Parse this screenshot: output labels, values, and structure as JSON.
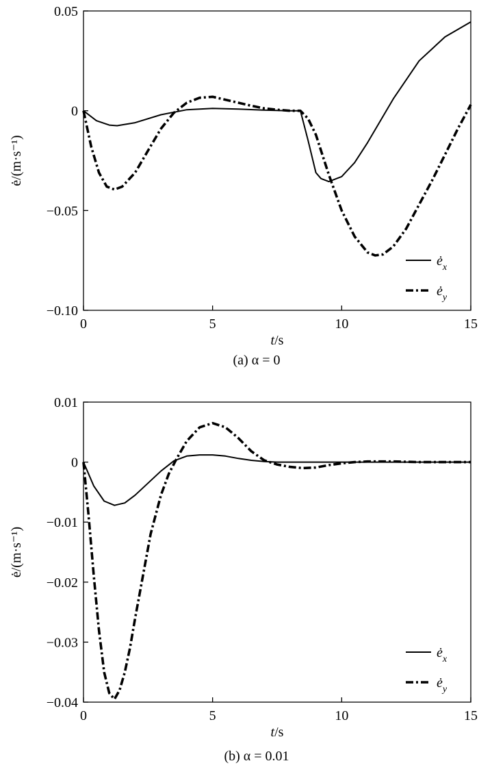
{
  "chart_data": [
    {
      "type": "line",
      "caption": "(a)  α = 0",
      "xlabel_var": "t",
      "xlabel_unit": "/s",
      "ylabel": "ė/(m·s⁻¹)",
      "xlim": [
        0,
        15
      ],
      "ylim": [
        -0.1,
        0.05
      ],
      "xticks": [
        0,
        5,
        10,
        15
      ],
      "xtick_labels": [
        "0",
        "5",
        "10",
        "15"
      ],
      "yticks": [
        0.05,
        0,
        -0.05,
        -0.1
      ],
      "ytick_labels": [
        "0.05",
        "0",
        "−0.05",
        "−0.10"
      ],
      "legend_position": "lower-right",
      "series": [
        {
          "name": "ė_x",
          "legend_base": "ė",
          "legend_sub": "x",
          "style": "solid",
          "x": [
            0,
            0.5,
            1.0,
            1.3,
            2.0,
            3.0,
            4.0,
            5.0,
            6.0,
            7.0,
            8.0,
            8.4,
            8.7,
            9.0,
            9.2,
            9.5,
            10.0,
            10.5,
            11.0,
            12.0,
            13.0,
            14.0,
            15.0
          ],
          "y": [
            0,
            -0.005,
            -0.0072,
            -0.0075,
            -0.006,
            -0.002,
            0.0005,
            0.0012,
            0.0008,
            0.0003,
            0,
            0,
            -0.015,
            -0.031,
            -0.034,
            -0.0355,
            -0.033,
            -0.026,
            -0.016,
            0.006,
            0.025,
            0.037,
            0.0445
          ]
        },
        {
          "name": "ė_y",
          "legend_base": "ė",
          "legend_sub": "y",
          "style": "dash-dot",
          "x": [
            0,
            0.3,
            0.6,
            0.9,
            1.2,
            1.5,
            2.0,
            2.5,
            3.0,
            3.5,
            4.0,
            4.5,
            5.0,
            5.5,
            6.0,
            6.5,
            7.0,
            7.5,
            8.0,
            8.4,
            8.7,
            9.0,
            9.5,
            10.0,
            10.5,
            11.0,
            11.3,
            11.6,
            12.0,
            12.5,
            13.0,
            13.5,
            14.0,
            14.5,
            15.0
          ],
          "y": [
            0,
            -0.018,
            -0.031,
            -0.038,
            -0.0395,
            -0.038,
            -0.031,
            -0.02,
            -0.009,
            -0.001,
            0.004,
            0.0065,
            0.007,
            0.0055,
            0.004,
            0.0025,
            0.0012,
            0.0005,
            0,
            0,
            -0.004,
            -0.012,
            -0.032,
            -0.05,
            -0.063,
            -0.071,
            -0.0725,
            -0.072,
            -0.068,
            -0.059,
            -0.047,
            -0.035,
            -0.022,
            -0.009,
            0.003
          ]
        }
      ]
    },
    {
      "type": "line",
      "caption": "(b)  α = 0.01",
      "xlabel_var": "t",
      "xlabel_unit": "/s",
      "ylabel": "ė/(m·s⁻¹)",
      "xlim": [
        0,
        15
      ],
      "ylim": [
        -0.04,
        0.01
      ],
      "xticks": [
        0,
        5,
        10,
        15
      ],
      "xtick_labels": [
        "0",
        "5",
        "10",
        "15"
      ],
      "yticks": [
        0.01,
        0,
        -0.01,
        -0.02,
        -0.03,
        -0.04
      ],
      "ytick_labels": [
        "0.01",
        "0",
        "−0.01",
        "−0.02",
        "−0.03",
        "−0.04"
      ],
      "legend_position": "lower-right",
      "series": [
        {
          "name": "ė_x",
          "legend_base": "ė",
          "legend_sub": "x",
          "style": "solid",
          "x": [
            0,
            0.4,
            0.8,
            1.2,
            1.6,
            2.0,
            2.5,
            3.0,
            3.5,
            4.0,
            4.5,
            5.0,
            5.5,
            6.0,
            6.5,
            7.0,
            7.5,
            8.0,
            9.0,
            10.0,
            11.0,
            12.0,
            13.0,
            14.0,
            15.0
          ],
          "y": [
            0,
            -0.004,
            -0.0065,
            -0.0072,
            -0.0068,
            -0.0055,
            -0.0035,
            -0.0015,
            0.0002,
            0.001,
            0.0012,
            0.0012,
            0.001,
            0.0006,
            0.0003,
            0.0001,
            0,
            0,
            0,
            0,
            0,
            0,
            0,
            0,
            0
          ]
        },
        {
          "name": "ė_y",
          "legend_base": "ė",
          "legend_sub": "y",
          "style": "dash-dot",
          "x": [
            0,
            0.2,
            0.4,
            0.6,
            0.8,
            1.0,
            1.2,
            1.4,
            1.6,
            1.8,
            2.0,
            2.3,
            2.6,
            3.0,
            3.3,
            3.6,
            4.0,
            4.5,
            5.0,
            5.5,
            6.0,
            6.5,
            7.0,
            7.5,
            8.0,
            8.5,
            9.0,
            9.5,
            10.0,
            10.5,
            11.0,
            11.5,
            12.0,
            13.0,
            14.0,
            15.0
          ],
          "y": [
            0,
            -0.009,
            -0.019,
            -0.028,
            -0.035,
            -0.0385,
            -0.0395,
            -0.038,
            -0.035,
            -0.031,
            -0.026,
            -0.019,
            -0.012,
            -0.0055,
            -0.002,
            0.0005,
            0.0035,
            0.0058,
            0.0065,
            0.0058,
            0.004,
            0.0018,
            0.0003,
            -0.0004,
            -0.0008,
            -0.001,
            -0.0009,
            -0.0005,
            -0.0002,
            0,
            0.0001,
            0.0001,
            0.0001,
            0,
            0,
            0
          ]
        }
      ]
    }
  ]
}
